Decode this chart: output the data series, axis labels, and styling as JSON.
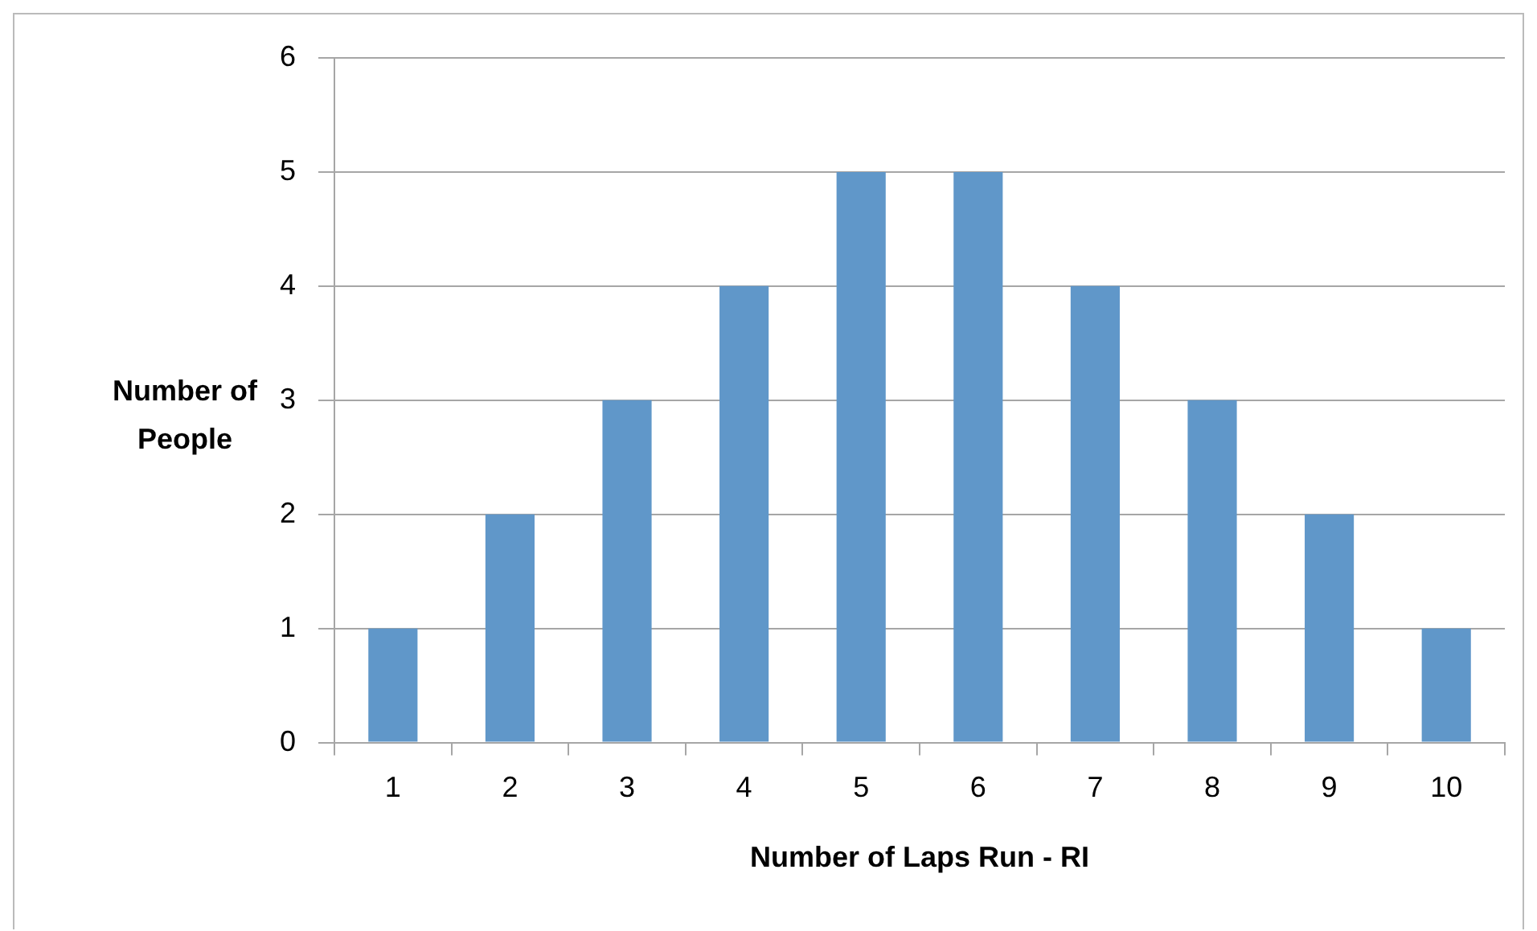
{
  "chart_data": {
    "type": "bar",
    "xlabel": "Number of Laps Run - RI",
    "ylabel": "Number of People",
    "categories": [
      "1",
      "2",
      "3",
      "4",
      "5",
      "6",
      "7",
      "8",
      "9",
      "10"
    ],
    "values": [
      1,
      2,
      3,
      4,
      5,
      5,
      4,
      3,
      2,
      1
    ],
    "color": "#6097c9",
    "ylim": [
      0,
      6
    ],
    "yticks": [
      0,
      1,
      2,
      3,
      4,
      5,
      6
    ],
    "grid": "y",
    "legend": false
  }
}
